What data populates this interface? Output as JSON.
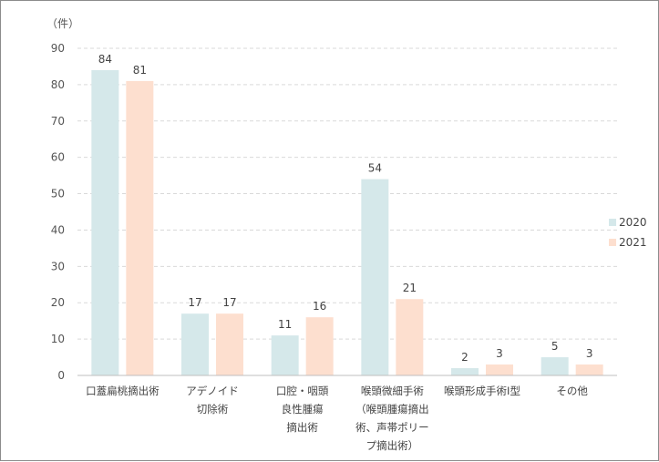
{
  "chart_data": {
    "type": "bar",
    "unit_label": "（件）",
    "categories": [
      [
        "口蓋扁桃摘出術"
      ],
      [
        "アデノイド",
        "切除術"
      ],
      [
        "口腔・咽頭",
        "良性腫瘍",
        "摘出術"
      ],
      [
        "喉頭微細手術",
        "（喉頭腫瘍摘出",
        "術、声帯ポリー",
        "プ摘出術）"
      ],
      [
        "喉頭形成手術Ⅰ型"
      ],
      [
        "その他"
      ]
    ],
    "series": [
      {
        "name": "2020",
        "color": "#d5e8ea",
        "values": [
          84,
          17,
          11,
          54,
          2,
          5
        ]
      },
      {
        "name": "2021",
        "color": "#fddfcf",
        "values": [
          81,
          17,
          16,
          21,
          3,
          3
        ]
      }
    ],
    "ylim": [
      0,
      90
    ],
    "yticks": [
      0,
      10,
      20,
      30,
      40,
      50,
      60,
      70,
      80,
      90
    ],
    "grid": true,
    "legend_position": "right"
  }
}
